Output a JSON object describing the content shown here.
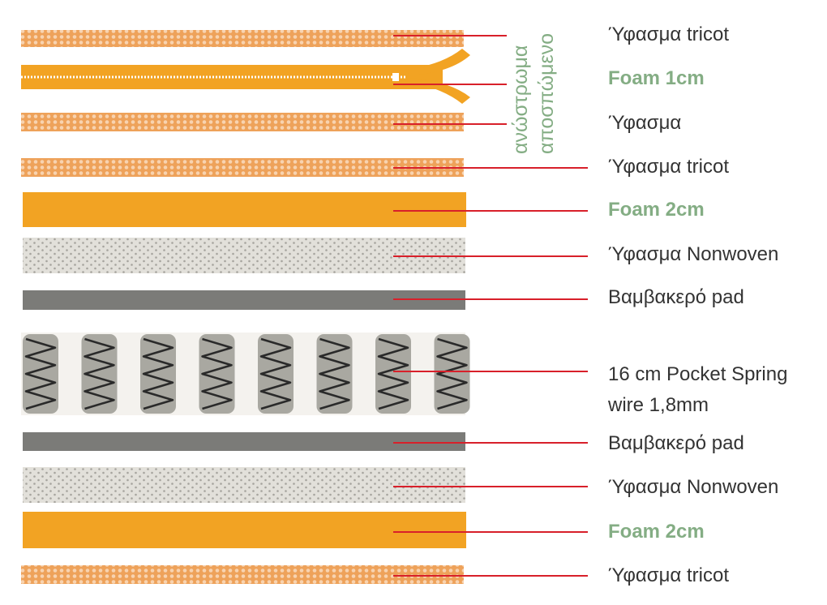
{
  "colors": {
    "orange": "#f2a323",
    "tricot_light": "#f7d6ad",
    "gray_pad": "#7b7b78",
    "nonwoven": "#dcdad4",
    "leader": "#d8202a",
    "label": "#333333",
    "green": "#84ad84"
  },
  "layers": [
    {
      "type": "tricot",
      "label": "Ύφασμα tricot",
      "highlight": false
    },
    {
      "type": "zipper",
      "label": "Foam 1cm",
      "highlight": true
    },
    {
      "type": "tricot",
      "label": "Ύφασμα",
      "highlight": false
    },
    {
      "type": "tricot",
      "label": "Ύφασμα tricot",
      "highlight": false
    },
    {
      "type": "foam",
      "label": "Foam 2cm",
      "highlight": true
    },
    {
      "type": "nonwoven",
      "label": "Ύφασμα Nonwoven",
      "highlight": false
    },
    {
      "type": "pad",
      "label": "Βαμβακερό pad",
      "highlight": false
    },
    {
      "type": "springs",
      "label": "16 cm Pocket Spring",
      "label2": "wire 1,8mm",
      "highlight": false
    },
    {
      "type": "pad",
      "label": "Βαμβακερό pad",
      "highlight": false
    },
    {
      "type": "nonwoven",
      "label": "Ύφασμα Nonwoven",
      "highlight": false
    },
    {
      "type": "foam",
      "label": "Foam 2cm",
      "highlight": true
    },
    {
      "type": "tricot",
      "label": "Ύφασμα tricot",
      "highlight": false
    }
  ],
  "topper": {
    "line1": "ανώστρωμα",
    "line2": "αποσπώμενο"
  }
}
